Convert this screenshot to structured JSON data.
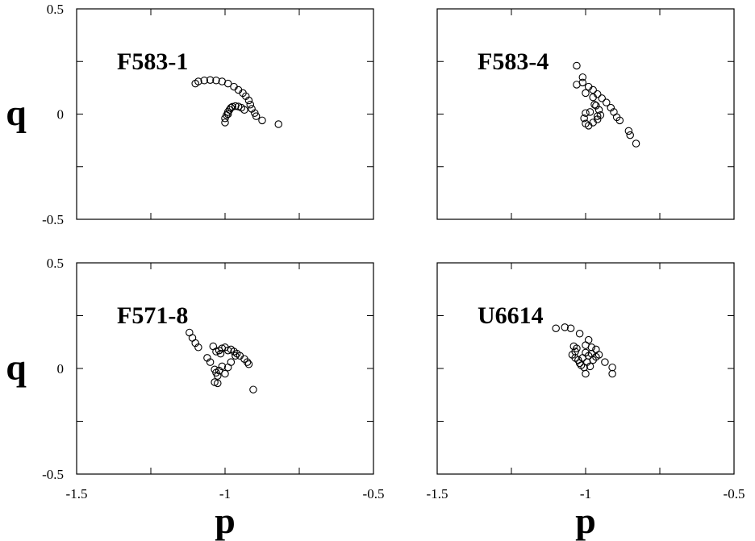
{
  "chart_data": [
    {
      "type": "scatter",
      "title": "F583-1",
      "xlabel": "",
      "ylabel": "q",
      "xlim": [
        -1.5,
        -0.5
      ],
      "ylim": [
        -0.5,
        0.5
      ],
      "xticks": [],
      "yticks": [
        "-0.5",
        "0",
        "0.5"
      ],
      "points": [
        [
          -1.1,
          0.145
        ],
        [
          -1.09,
          0.155
        ],
        [
          -1.07,
          0.16
        ],
        [
          -1.05,
          0.162
        ],
        [
          -1.03,
          0.16
        ],
        [
          -1.01,
          0.155
        ],
        [
          -0.99,
          0.145
        ],
        [
          -0.97,
          0.13
        ],
        [
          -0.955,
          0.115
        ],
        [
          -0.94,
          0.1
        ],
        [
          -0.93,
          0.085
        ],
        [
          -0.92,
          0.065
        ],
        [
          -0.915,
          0.045
        ],
        [
          -0.91,
          0.025
        ],
        [
          -0.9,
          0.005
        ],
        [
          -0.895,
          -0.01
        ],
        [
          -0.875,
          -0.03
        ],
        [
          -0.82,
          -0.048
        ],
        [
          -1.0,
          -0.04
        ],
        [
          -1.0,
          -0.02
        ],
        [
          -0.995,
          -0.005
        ],
        [
          -0.99,
          0.01
        ],
        [
          -0.985,
          0.02
        ],
        [
          -0.98,
          0.03
        ],
        [
          -0.975,
          0.035
        ],
        [
          -0.965,
          0.038
        ],
        [
          -0.955,
          0.036
        ],
        [
          -0.945,
          0.03
        ],
        [
          -0.935,
          0.02
        ],
        [
          -0.99,
          0.0
        ]
      ]
    },
    {
      "type": "scatter",
      "title": "F583-4",
      "xlabel": "",
      "ylabel": "",
      "xlim": [
        -1.5,
        -0.5
      ],
      "ylim": [
        -0.5,
        0.5
      ],
      "xticks": [],
      "yticks": [],
      "points": [
        [
          -1.03,
          0.23
        ],
        [
          -1.03,
          0.14
        ],
        [
          -1.01,
          0.15
        ],
        [
          -1.01,
          0.175
        ],
        [
          -0.99,
          0.13
        ],
        [
          -0.975,
          0.115
        ],
        [
          -0.96,
          0.095
        ],
        [
          -0.945,
          0.075
        ],
        [
          -0.93,
          0.055
        ],
        [
          -0.915,
          0.03
        ],
        [
          -0.905,
          0.01
        ],
        [
          -0.895,
          -0.015
        ],
        [
          -0.885,
          -0.03
        ],
        [
          -0.855,
          -0.08
        ],
        [
          -0.85,
          -0.1
        ],
        [
          -0.83,
          -0.14
        ],
        [
          -1.0,
          0.1
        ],
        [
          -0.975,
          0.08
        ],
        [
          -0.965,
          0.04
        ],
        [
          -0.955,
          0.02
        ],
        [
          -0.95,
          -0.005
        ],
        [
          -0.96,
          -0.025
        ],
        [
          -0.975,
          -0.04
        ],
        [
          -0.99,
          -0.055
        ],
        [
          -1.0,
          -0.045
        ],
        [
          -1.005,
          -0.02
        ],
        [
          -1.0,
          0.005
        ],
        [
          -0.985,
          0.01
        ],
        [
          -0.97,
          0.045
        ],
        [
          -0.96,
          -0.01
        ]
      ]
    },
    {
      "type": "scatter",
      "title": "F571-8",
      "xlabel": "p",
      "ylabel": "q",
      "xlim": [
        -1.5,
        -0.5
      ],
      "ylim": [
        -0.5,
        0.5
      ],
      "xticks": [
        "-1.5",
        "-1",
        "-0.5"
      ],
      "yticks": [
        "-0.5",
        "0",
        "0.5"
      ],
      "points": [
        [
          -1.12,
          0.17
        ],
        [
          -1.11,
          0.145
        ],
        [
          -1.1,
          0.12
        ],
        [
          -1.09,
          0.1
        ],
        [
          -1.06,
          0.05
        ],
        [
          -1.04,
          0.105
        ],
        [
          -1.03,
          0.08
        ],
        [
          -1.02,
          0.085
        ],
        [
          -1.01,
          0.095
        ],
        [
          -1.0,
          0.1
        ],
        [
          -0.99,
          0.085
        ],
        [
          -0.98,
          0.09
        ],
        [
          -0.97,
          0.08
        ],
        [
          -0.96,
          0.07
        ],
        [
          -0.95,
          0.06
        ],
        [
          -0.935,
          0.045
        ],
        [
          -0.925,
          0.03
        ],
        [
          -0.92,
          0.02
        ],
        [
          -0.905,
          -0.1
        ],
        [
          -1.05,
          0.03
        ],
        [
          -1.035,
          -0.005
        ],
        [
          -1.03,
          -0.02
        ],
        [
          -1.025,
          -0.035
        ],
        [
          -1.02,
          -0.01
        ],
        [
          -1.01,
          0.01
        ],
        [
          -1.0,
          -0.025
        ],
        [
          -0.99,
          0.005
        ],
        [
          -1.035,
          -0.065
        ],
        [
          -1.025,
          -0.07
        ],
        [
          -0.98,
          0.03
        ],
        [
          -1.015,
          0.07
        ],
        [
          -0.965,
          0.06
        ]
      ]
    },
    {
      "type": "scatter",
      "title": "U6614",
      "xlabel": "p",
      "ylabel": "",
      "xlim": [
        -1.5,
        -0.5
      ],
      "ylim": [
        -0.5,
        0.5
      ],
      "xticks": [
        "-1.5",
        "-1",
        "-0.5"
      ],
      "yticks": [],
      "points": [
        [
          -1.1,
          0.19
        ],
        [
          -1.07,
          0.195
        ],
        [
          -1.05,
          0.19
        ],
        [
          -1.02,
          0.165
        ],
        [
          -1.0,
          0.11
        ],
        [
          -0.99,
          0.135
        ],
        [
          -0.98,
          0.1
        ],
        [
          -0.965,
          0.09
        ],
        [
          -0.955,
          0.065
        ],
        [
          -0.935,
          0.03
        ],
        [
          -0.91,
          0.005
        ],
        [
          -0.91,
          -0.025
        ],
        [
          -1.04,
          0.105
        ],
        [
          -1.035,
          0.08
        ],
        [
          -1.03,
          0.095
        ],
        [
          -1.045,
          0.065
        ],
        [
          -1.035,
          0.05
        ],
        [
          -1.025,
          0.04
        ],
        [
          -1.02,
          0.025
        ],
        [
          -1.015,
          0.015
        ],
        [
          -1.005,
          0.005
        ],
        [
          -1.0,
          -0.025
        ],
        [
          -0.995,
          0.03
        ],
        [
          -0.985,
          0.01
        ],
        [
          -0.99,
          0.06
        ],
        [
          -1.0,
          0.075
        ],
        [
          -0.975,
          0.04
        ],
        [
          -1.01,
          0.05
        ],
        [
          -0.965,
          0.055
        ],
        [
          -0.98,
          0.07
        ]
      ]
    }
  ]
}
